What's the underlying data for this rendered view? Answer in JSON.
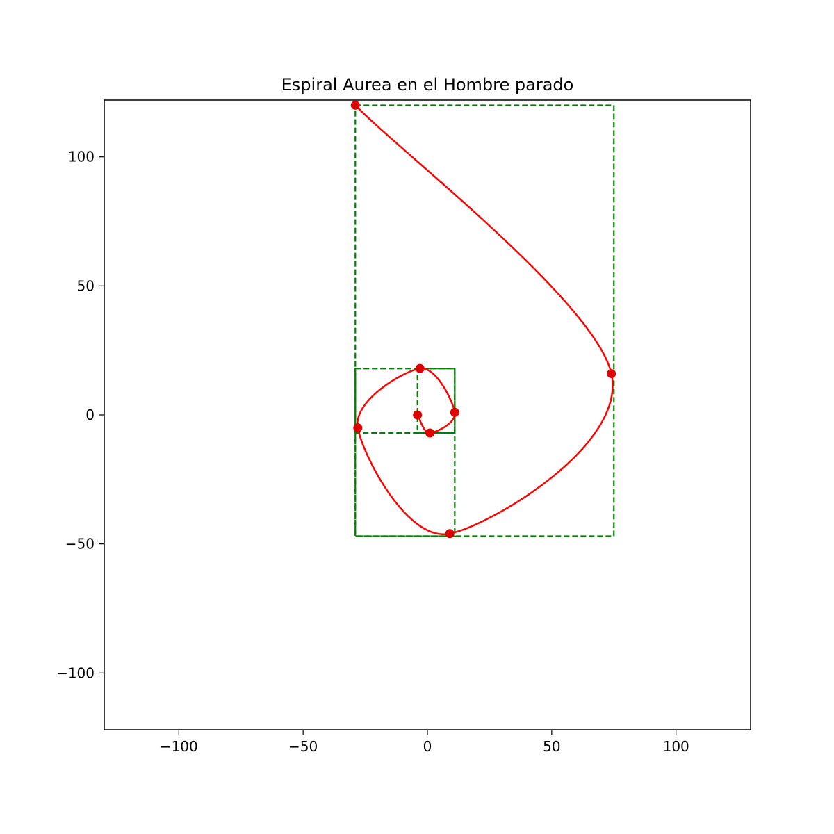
{
  "chart_data": {
    "type": "line",
    "title": "Espiral Aurea en el Hombre parado",
    "xlabel": "",
    "ylabel": "",
    "xlim": [
      -130,
      130
    ],
    "ylim": [
      -122,
      122
    ],
    "xticks": [
      -100,
      -50,
      0,
      50,
      100
    ],
    "xtick_labels": [
      "−100",
      "−50",
      "0",
      "50",
      "100"
    ],
    "yticks": [
      -100,
      -50,
      0,
      50,
      100
    ],
    "ytick_labels": [
      "−100",
      "−50",
      "0",
      "50",
      "100"
    ],
    "grid": false,
    "colors": {
      "spiral": "#ff0000",
      "points": "#e00000",
      "rectangles": "#008000"
    },
    "rectangles": [
      {
        "x0": -29,
        "y0": -47,
        "x1": 75,
        "y1": 120
      },
      {
        "x0": -29,
        "y0": -47,
        "x1": 11,
        "y1": 18
      },
      {
        "x0": -29,
        "y0": -7,
        "x1": 11,
        "y1": 18
      },
      {
        "x0": -4,
        "y0": -7,
        "x1": 11,
        "y1": 18
      }
    ],
    "points": [
      {
        "x": -29,
        "y": 120
      },
      {
        "x": 74,
        "y": 16
      },
      {
        "x": 9,
        "y": -46
      },
      {
        "x": -28,
        "y": -5
      },
      {
        "x": -3,
        "y": 18
      },
      {
        "x": 11,
        "y": 1
      },
      {
        "x": 1,
        "y": -7
      },
      {
        "x": -4,
        "y": 0
      }
    ]
  }
}
